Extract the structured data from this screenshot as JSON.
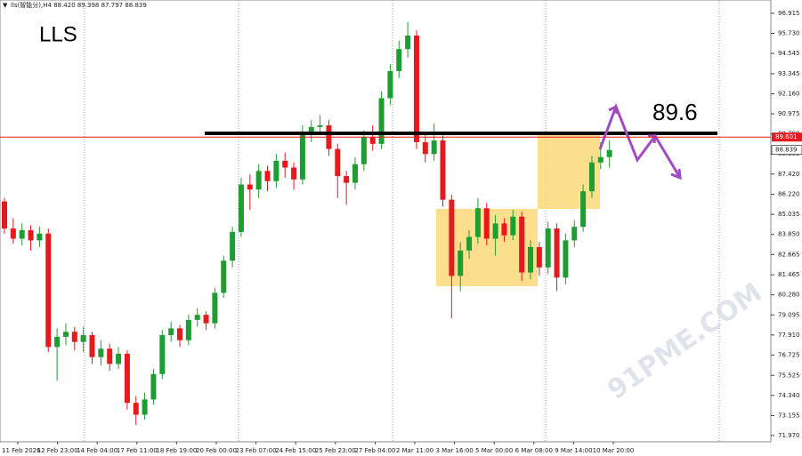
{
  "chart_data": {
    "type": "candlestick",
    "header": "lls(智能分),H4 88.420 89.398 87.797 88.839",
    "title": "LLS",
    "annotation": "89.6",
    "watermark": "91PME.COM",
    "up_color": "#1e9e32",
    "down_color": "#e8191c",
    "ylim": [
      71.6,
      97.7
    ],
    "yticks": [
      96.915,
      {
        "value": 95.73,
        "label": "95.730"
      },
      94.545,
      93.345,
      {
        "value": 92.16,
        "label": "92.160"
      },
      90.975,
      {
        "value": 89.79,
        "label": "89.790"
      },
      88.605,
      {
        "value": 87.42,
        "label": "87.420"
      },
      {
        "value": 86.22,
        "label": "86.220"
      },
      85.035,
      {
        "value": 83.85,
        "label": "83.850"
      },
      82.665,
      81.465,
      {
        "value": 80.28,
        "label": "80.280"
      },
      79.095,
      {
        "value": 77.91,
        "label": "77.910"
      },
      76.725,
      75.525,
      {
        "value": 74.34,
        "label": "74.340"
      },
      73.155,
      {
        "value": 71.97,
        "label": "71.970"
      }
    ],
    "price_line": 89.601,
    "last_price": 88.839,
    "x_labels": [
      "11 Feb 2026",
      "12 Feb 23:00",
      "14 Feb 04:00",
      "17 Feb 11:00",
      "18 Feb 19:00",
      "20 Feb 00:00",
      "23 Feb 07:00",
      "24 Feb 15:00",
      "25 Feb 23:00",
      "27 Feb 04:00",
      "2 Mar 11:00",
      "3 Mar 16:00",
      "5 Mar 00:00",
      "6 Mar 08:00",
      "9 Mar 14:00",
      "10 Mar 20:00"
    ],
    "candles": [
      [
        85.8,
        86.0,
        83.9,
        84.2
      ],
      [
        84.2,
        84.8,
        83.3,
        83.6
      ],
      [
        83.6,
        84.5,
        83.2,
        84.1
      ],
      [
        84.1,
        84.4,
        82.9,
        83.5
      ],
      [
        83.5,
        84.3,
        83.1,
        83.9
      ],
      [
        83.9,
        84.2,
        76.9,
        77.2
      ],
      [
        77.2,
        78.3,
        75.2,
        77.8
      ],
      [
        77.8,
        78.6,
        77.3,
        78.1
      ],
      [
        78.1,
        78.4,
        77.0,
        77.5
      ],
      [
        77.5,
        78.4,
        76.9,
        77.9
      ],
      [
        77.9,
        78.1,
        76.2,
        76.6
      ],
      [
        76.6,
        77.6,
        76.1,
        77.1
      ],
      [
        77.1,
        77.4,
        75.8,
        76.2
      ],
      [
        76.2,
        77.2,
        75.9,
        76.8
      ],
      [
        76.8,
        77.0,
        73.5,
        73.9
      ],
      [
        73.9,
        74.3,
        72.6,
        73.2
      ],
      [
        73.2,
        74.5,
        72.9,
        74.1
      ],
      [
        74.1,
        75.9,
        73.8,
        75.6
      ],
      [
        75.6,
        78.2,
        75.3,
        77.9
      ],
      [
        77.9,
        78.7,
        77.5,
        78.3
      ],
      [
        78.3,
        78.5,
        77.2,
        77.6
      ],
      [
        77.6,
        79.1,
        77.3,
        78.8
      ],
      [
        78.8,
        79.5,
        78.4,
        79.1
      ],
      [
        79.1,
        79.3,
        78.2,
        78.6
      ],
      [
        78.6,
        80.7,
        78.3,
        80.4
      ],
      [
        80.4,
        82.6,
        80.1,
        82.3
      ],
      [
        82.3,
        84.3,
        81.9,
        84.0
      ],
      [
        84.0,
        87.2,
        83.7,
        86.8
      ],
      [
        86.8,
        87.4,
        85.3,
        86.5
      ],
      [
        86.5,
        88.0,
        86.0,
        87.6
      ],
      [
        87.6,
        87.9,
        86.4,
        87.0
      ],
      [
        87.0,
        88.6,
        86.6,
        88.2
      ],
      [
        88.2,
        88.7,
        87.2,
        87.8
      ],
      [
        87.8,
        88.1,
        86.5,
        87.1
      ],
      [
        87.1,
        90.3,
        86.8,
        89.8
      ],
      [
        89.8,
        90.6,
        89.3,
        90.2
      ],
      [
        90.2,
        90.9,
        89.8,
        90.3
      ],
      [
        90.3,
        90.6,
        88.5,
        88.9
      ],
      [
        88.9,
        89.2,
        86.0,
        87.3
      ],
      [
        87.3,
        87.6,
        85.6,
        86.9
      ],
      [
        86.9,
        88.4,
        86.5,
        88.0
      ],
      [
        88.0,
        90.0,
        87.6,
        89.6
      ],
      [
        89.6,
        90.3,
        88.8,
        89.2
      ],
      [
        89.2,
        92.3,
        88.9,
        91.9
      ],
      [
        91.9,
        93.9,
        91.5,
        93.5
      ],
      [
        93.5,
        95.3,
        93.1,
        94.8
      ],
      [
        94.8,
        96.4,
        94.3,
        95.6
      ],
      [
        95.6,
        95.9,
        88.9,
        89.3
      ],
      [
        89.3,
        89.8,
        88.1,
        88.6
      ],
      [
        88.6,
        90.4,
        88.2,
        89.4
      ],
      [
        89.4,
        89.7,
        85.5,
        85.9
      ],
      [
        85.9,
        86.2,
        78.9,
        81.4
      ],
      [
        81.4,
        83.4,
        80.5,
        82.9
      ],
      [
        82.9,
        84.1,
        82.4,
        83.7
      ],
      [
        83.7,
        86.0,
        83.3,
        85.4
      ],
      [
        85.4,
        85.7,
        83.2,
        83.6
      ],
      [
        83.6,
        85.0,
        82.6,
        84.5
      ],
      [
        84.5,
        84.8,
        83.4,
        83.8
      ],
      [
        83.8,
        85.3,
        83.5,
        84.9
      ],
      [
        84.9,
        85.2,
        81.1,
        81.6
      ],
      [
        81.6,
        83.5,
        81.2,
        83.1
      ],
      [
        83.1,
        83.4,
        81.4,
        81.9
      ],
      [
        81.9,
        84.6,
        81.5,
        84.2
      ],
      [
        84.2,
        84.5,
        80.5,
        81.3
      ],
      [
        81.3,
        83.9,
        80.9,
        83.5
      ],
      [
        83.5,
        84.7,
        83.1,
        84.3
      ],
      [
        84.3,
        86.8,
        84.0,
        86.4
      ],
      [
        86.4,
        88.5,
        86.0,
        88.1
      ],
      [
        88.1,
        89.3,
        87.7,
        88.42
      ],
      [
        88.42,
        89.398,
        87.797,
        88.839
      ]
    ]
  }
}
